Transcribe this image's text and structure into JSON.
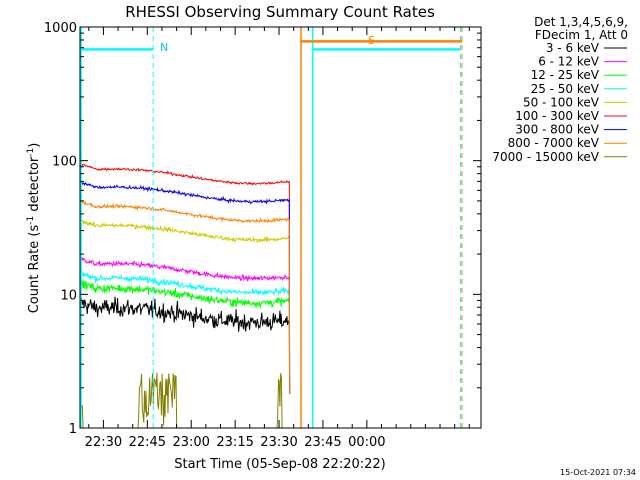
{
  "chart_data": {
    "type": "line",
    "title": "RHESSI Observing Summary Count Rates",
    "xlabel": "Start Time (05-Sep-08 22:20:22)",
    "ylabel_main": "Count Rate (s",
    "ylabel_sup1": "-1",
    "ylabel_mid": " detector",
    "ylabel_sup2": "-1",
    "ylabel_end": ")",
    "y_scale": "log",
    "ylim": [
      1,
      1000
    ],
    "xlim_minutes": [
      22.0,
      159.0
    ],
    "x_tick_labels": [
      "22:30",
      "22:45",
      "23:00",
      "23:15",
      "23:30",
      "23:45",
      "00:00"
    ],
    "x_tick_minutes": [
      30,
      45,
      60,
      75,
      90,
      105,
      120
    ],
    "y_tick_labels": [
      "1",
      "10",
      "100",
      "1000"
    ],
    "y_tick_values": [
      1,
      10,
      100,
      1000
    ],
    "legend_header": [
      "Det 1,3,4,5,6,9,",
      "FDecim 1, Att 0"
    ],
    "legend_position": "right",
    "series": [
      {
        "name": "3 - 6 keV",
        "color": "#000000",
        "level": 7.5
      },
      {
        "name": "6 - 12 keV",
        "color": "#ff00ff",
        "level": 16
      },
      {
        "name": "12 - 25 keV",
        "color": "#00ff00",
        "level": 10.5
      },
      {
        "name": "25 - 50 keV",
        "color": "#00ffff",
        "level": 12.5
      },
      {
        "name": "50 - 100 keV",
        "color": "#cccc00",
        "level": 31
      },
      {
        "name": "100 - 300 keV",
        "color": "#ff0000",
        "level": 82
      },
      {
        "name": "300 - 800 keV",
        "color": "#0000ff",
        "level": 60
      },
      {
        "name": "800 - 7000 keV",
        "color": "#ff8000",
        "level": 43
      },
      {
        "name": "7000 - 15000 keV",
        "color": "#808000",
        "level": 1
      }
    ],
    "data_end_minute": 93.5,
    "night_label": "N",
    "saa_label": "S",
    "night_intervals_minutes": [
      [
        22.0,
        47.0
      ],
      [
        101.5,
        152.0
      ]
    ],
    "saa_start_minute": 97.5,
    "night_level": 680,
    "saa_level": 780
  },
  "footer_timestamp": "15-Oct-2021 07:34"
}
